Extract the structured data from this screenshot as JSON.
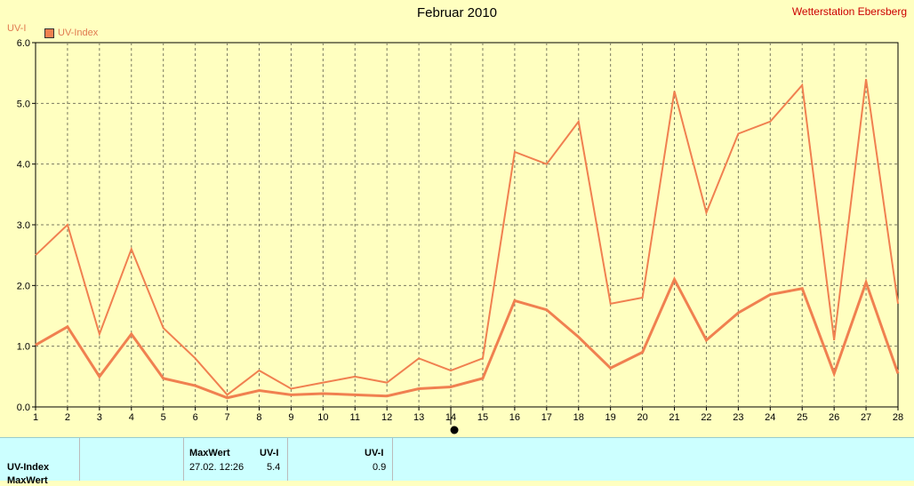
{
  "header": {
    "title": "Februar 2010",
    "station": "Wetterstation Ebersberg",
    "y_axis_label": "UV-I",
    "legend_label": "UV-Index"
  },
  "colors": {
    "background": "#ffffc0",
    "line": "#f08050",
    "grid": "#7a7a60",
    "table_bg": "#ccffff",
    "station_text": "#cc0000"
  },
  "chart_data": {
    "type": "line",
    "title": "Februar 2010",
    "ylabel": "UV-I",
    "xlabel": "",
    "x": [
      1,
      2,
      3,
      4,
      5,
      6,
      7,
      8,
      9,
      10,
      11,
      12,
      13,
      14,
      15,
      16,
      17,
      18,
      19,
      20,
      21,
      22,
      23,
      24,
      25,
      26,
      27,
      28
    ],
    "xlim": [
      1,
      28
    ],
    "ylim": [
      0,
      6
    ],
    "yticks": [
      "0.0",
      "1.0",
      "2.0",
      "3.0",
      "4.0",
      "5.0",
      "6.0"
    ],
    "grid": true,
    "legend": "top-left",
    "series": [
      {
        "name": "UV-Index",
        "values": [
          2.5,
          3.0,
          1.2,
          2.6,
          1.3,
          0.8,
          0.2,
          0.6,
          0.3,
          0.4,
          0.5,
          0.4,
          0.8,
          0.6,
          0.8,
          4.2,
          4.0,
          4.7,
          1.7,
          1.8,
          5.2,
          3.2,
          4.5,
          4.7,
          5.3,
          1.1,
          5.4,
          1.7
        ]
      },
      {
        "name": "",
        "values": [
          1.02,
          1.32,
          0.5,
          1.2,
          0.47,
          0.35,
          0.15,
          0.27,
          0.2,
          0.22,
          0.2,
          0.18,
          0.3,
          0.33,
          0.47,
          1.75,
          1.6,
          1.15,
          0.64,
          0.9,
          2.1,
          1.1,
          1.55,
          1.85,
          1.95,
          0.55,
          2.05,
          0.55
        ]
      }
    ],
    "marker_x": 14
  },
  "table": {
    "row_label": "UV-Index",
    "row_label_2": "MaxWert",
    "max_header": "MaxWert",
    "unit_header_1": "UV-I",
    "unit_header_2": "UV-I",
    "max_time": "27.02.  12:26",
    "max_value": "5.4",
    "current_value": "0.9"
  }
}
